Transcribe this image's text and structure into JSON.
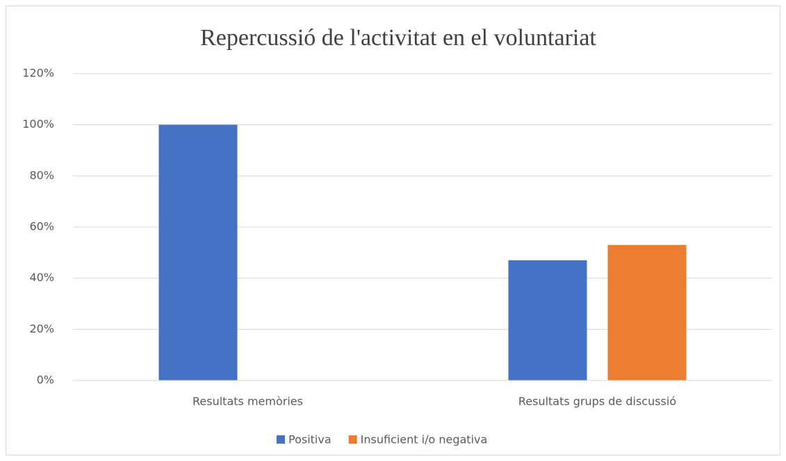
{
  "chart_data": {
    "type": "bar",
    "title": "Repercussió de l'activitat en el voluntariat",
    "categories": [
      "Resultats memòries",
      "Resultats grups de discussió"
    ],
    "series": [
      {
        "name": "Positiva",
        "color": "#4472c4",
        "values": [
          100,
          47
        ]
      },
      {
        "name": "Insuficient i/o negativa",
        "color": "#ed7d31",
        "values": [
          0,
          53
        ]
      }
    ],
    "ylim": [
      0,
      120
    ],
    "yticks": [
      {
        "value": 0,
        "label": "0%"
      },
      {
        "value": 20,
        "label": "20%"
      },
      {
        "value": 40,
        "label": "40%"
      },
      {
        "value": 60,
        "label": "60%"
      },
      {
        "value": 80,
        "label": "80%"
      },
      {
        "value": 100,
        "label": "100%"
      },
      {
        "value": 120,
        "label": "120%"
      }
    ],
    "grid": true,
    "legend": "bottom"
  }
}
